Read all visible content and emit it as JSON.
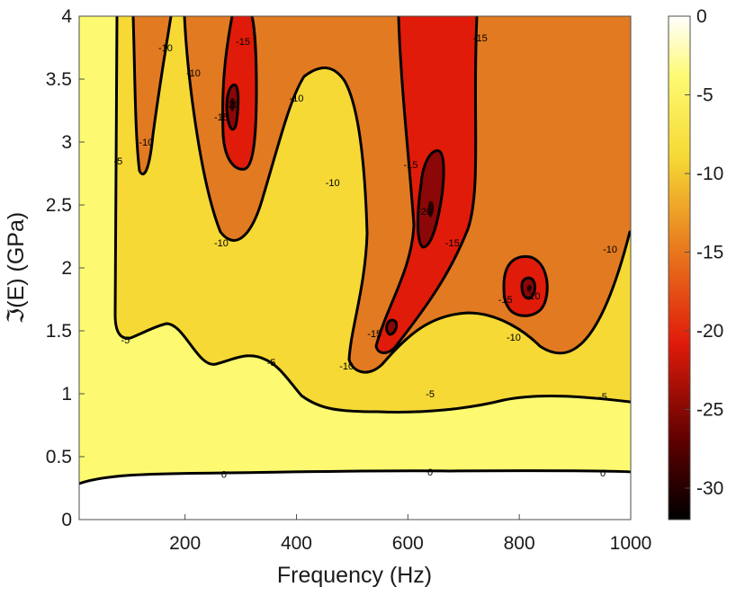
{
  "chart_data": {
    "type": "heatmap",
    "subtype": "filled-contour",
    "title": "",
    "xlabel": "Frequency (Hz)",
    "ylabel": "ℑ(E) (GPa)",
    "xlim": [
      10,
      1000
    ],
    "ylim": [
      0,
      4
    ],
    "xticks": [
      200,
      400,
      600,
      800,
      1000
    ],
    "yticks": [
      0,
      0.5,
      1,
      1.5,
      2,
      2.5,
      3,
      3.5,
      4
    ],
    "grid": false,
    "colormap": "hot",
    "colorbar": {
      "location": "right",
      "range": [
        -32,
        0
      ],
      "ticks": [
        0,
        -5,
        -10,
        -15,
        -20,
        -25,
        -30
      ]
    },
    "levels": [
      0,
      -5,
      -10,
      -15,
      -20,
      -25,
      -30
    ],
    "level_colors": {
      "above_0": "#ffffff",
      "0_to_-5": "#fdfa72",
      "-5_to_-10": "#f6d935",
      "-10_to_-15": "#e27a22",
      "-15_to_-20": "#e01b0a",
      "-20_to_-25": "#8c0707",
      "below_-25": "#2a0000"
    },
    "contour_labels": [
      {
        "level": "0",
        "x": 270,
        "y": 0.36
      },
      {
        "level": "0",
        "x": 640,
        "y": 0.38
      },
      {
        "level": "0",
        "x": 950,
        "y": 0.37
      },
      {
        "level": "-5",
        "x": 93,
        "y": 1.43
      },
      {
        "level": "-5",
        "x": 355,
        "y": 1.25
      },
      {
        "level": "-5",
        "x": 640,
        "y": 1.0
      },
      {
        "level": "-5",
        "x": 950,
        "y": 0.98
      },
      {
        "level": "-5",
        "x": 80,
        "y": 2.85
      },
      {
        "level": "-10",
        "x": 130,
        "y": 3.0
      },
      {
        "level": "-10",
        "x": 165,
        "y": 3.75
      },
      {
        "level": "-10",
        "x": 215,
        "y": 3.55
      },
      {
        "level": "-10",
        "x": 265,
        "y": 2.2
      },
      {
        "level": "-10",
        "x": 400,
        "y": 3.35
      },
      {
        "level": "-10",
        "x": 465,
        "y": 2.68
      },
      {
        "level": "-10",
        "x": 490,
        "y": 1.22
      },
      {
        "level": "-10",
        "x": 790,
        "y": 1.45
      },
      {
        "level": "-10",
        "x": 963,
        "y": 2.15
      },
      {
        "level": "-15",
        "x": 304,
        "y": 3.8
      },
      {
        "level": "-15",
        "x": 265,
        "y": 3.2
      },
      {
        "level": "-15",
        "x": 605,
        "y": 2.82
      },
      {
        "level": "-15",
        "x": 540,
        "y": 1.48
      },
      {
        "level": "-15",
        "x": 730,
        "y": 3.83
      },
      {
        "level": "-15",
        "x": 680,
        "y": 2.2
      },
      {
        "level": "-15",
        "x": 775,
        "y": 1.75
      },
      {
        "level": "-20",
        "x": 285,
        "y": 3.3
      },
      {
        "level": "-20",
        "x": 630,
        "y": 2.45
      },
      {
        "level": "-20",
        "x": 825,
        "y": 1.78
      }
    ]
  }
}
